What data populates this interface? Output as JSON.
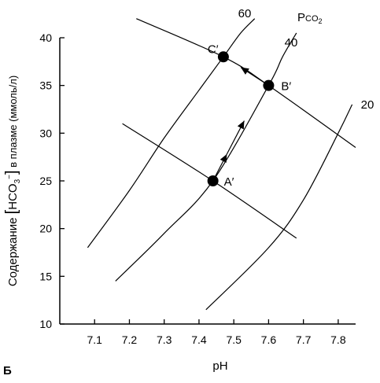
{
  "figure_letter": "Б",
  "chart_data": {
    "type": "line",
    "title": "",
    "xlabel": "pH",
    "ylabel_parts": {
      "pre": "Содержание ",
      "bopen": "[",
      "main": "HCO",
      "sub": "3",
      "sup": "−",
      "bclose": "]",
      "post": " в плазме  (ммоль/л)"
    },
    "ylabel": "Содержание [HCO3−] в плазме (ммоль/л)",
    "xlim": [
      7.0,
      7.85
    ],
    "ylim": [
      10,
      40
    ],
    "xticks": [
      "7.1",
      "7.2",
      "7.3",
      "7.4",
      "7.5",
      "7.6",
      "7.7",
      "7.8"
    ],
    "yticks": [
      "10",
      "15",
      "20",
      "25",
      "30",
      "35",
      "40"
    ],
    "grid": false,
    "isopleth_header": "Pco2",
    "isopleths": [
      {
        "name": "60",
        "points": [
          [
            7.08,
            18
          ],
          [
            7.2,
            24
          ],
          [
            7.3,
            29.5
          ],
          [
            7.4,
            34.5
          ],
          [
            7.47,
            38
          ],
          [
            7.52,
            40.5
          ],
          [
            7.56,
            42
          ]
        ]
      },
      {
        "name": "40",
        "points": [
          [
            7.16,
            14.5
          ],
          [
            7.3,
            19.5
          ],
          [
            7.44,
            25
          ],
          [
            7.6,
            35
          ],
          [
            7.64,
            38
          ],
          [
            7.68,
            40.5
          ]
        ]
      },
      {
        "name": "20",
        "points": [
          [
            7.42,
            11.5
          ],
          [
            7.6,
            18
          ],
          [
            7.7,
            23
          ],
          [
            7.8,
            30
          ],
          [
            7.84,
            33
          ]
        ]
      }
    ],
    "buffer_lines": [
      {
        "points": [
          [
            7.22,
            42
          ],
          [
            7.47,
            38
          ],
          [
            7.6,
            35
          ],
          [
            7.85,
            28.5
          ]
        ]
      },
      {
        "points": [
          [
            7.18,
            31
          ],
          [
            7.44,
            25
          ],
          [
            7.68,
            19
          ]
        ]
      }
    ],
    "points": [
      {
        "label": "A′",
        "x": 7.44,
        "y": 25
      },
      {
        "label": "B′",
        "x": 7.6,
        "y": 35
      },
      {
        "label": "C′",
        "x": 7.47,
        "y": 38
      }
    ],
    "arrows": [
      {
        "from": [
          7.44,
          25
        ],
        "to": [
          7.48,
          27.8
        ]
      },
      {
        "from": [
          7.48,
          27.8
        ],
        "to": [
          7.53,
          31.3
        ]
      },
      {
        "from": [
          7.6,
          35
        ],
        "to": [
          7.52,
          36.9
        ]
      }
    ]
  }
}
